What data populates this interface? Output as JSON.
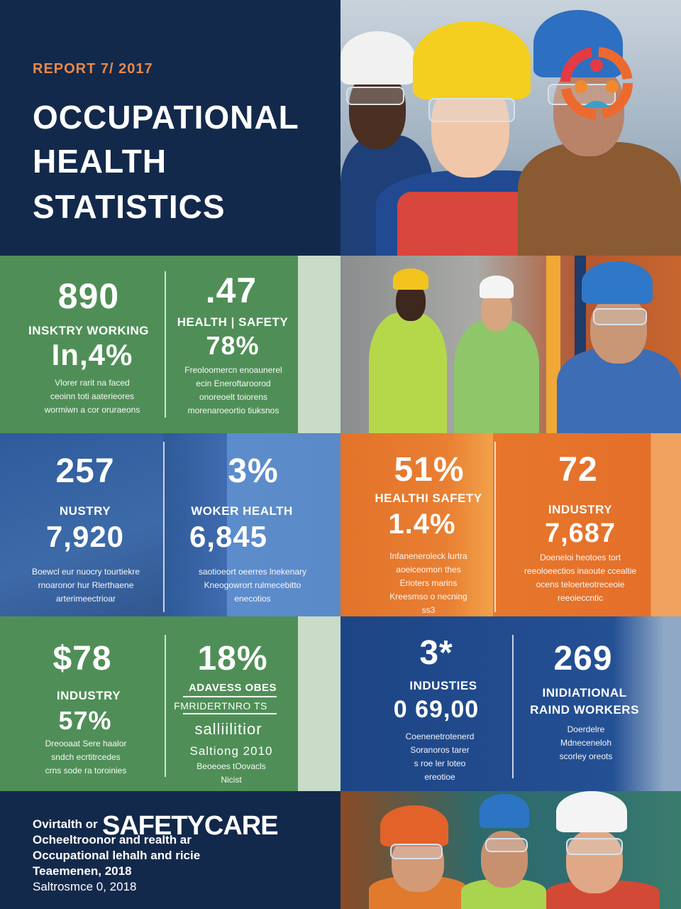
{
  "header": {
    "report_label": "REPORT 7/ 2017",
    "title_line1": "OCCUPATIONAL",
    "title_line2": "HEALTH",
    "title_line3": "STATISTICS"
  },
  "row1": {
    "left": {
      "stat": "890",
      "label": "INSKTRY WORKING",
      "stat2": "In,4%",
      "desc": [
        "Vlorer rarit na faced",
        "ceoinn toti aaterieores",
        "wormiwn a cor oruraeons"
      ]
    },
    "right": {
      "stat": ".47",
      "label": "HEALTH | SAFETY",
      "stat2": "78%",
      "desc": [
        "Freoloomercn enoaunerel",
        "ecin Eneroftaroorod",
        "onoreoelt toiorens",
        "morenaroeortio tiuksnos"
      ]
    }
  },
  "row2": {
    "c1": {
      "stat": "257",
      "label": "NUSTRY",
      "stat2": "7,920",
      "desc": [
        "Boewcl eur nuocry tourtiekre",
        "rnoaronor hur Rlerthaene",
        "arterimeectrioar"
      ]
    },
    "c2": {
      "stat": "3%",
      "label": "WOKER HEALTH",
      "stat2": "6,845",
      "desc": [
        "saotioeort oeerres lnekenary",
        "Kneogowrort rulmecebitto",
        "enecotios"
      ]
    },
    "c3": {
      "stat": "51%",
      "label": "HEALTHI SAFETY",
      "stat2": "1.4%",
      "desc": [
        "Infaneneroleck lurtra",
        "aoeiceomon thes",
        "Erioters marins",
        "Kreesmso o necning",
        "ss3"
      ]
    },
    "c4": {
      "stat": "72",
      "label": "INDUSTRY",
      "stat2": "7,687",
      "desc": [
        "Doeneloi heotoes tort",
        "reeoloeectios inaoute ccealtie",
        "ocens teloerteotreceoie",
        "reeoieccntic"
      ]
    }
  },
  "row3": {
    "c1": {
      "stat": "$78",
      "label": "INDUSTRY",
      "stat2": "57%",
      "desc": [
        "Dreooaat Sere haalor",
        "sndch ecrtitrcedes",
        "crns sode ra toroinies"
      ]
    },
    "c2": {
      "stat": "18%",
      "label": "ADAVESS OBES",
      "label2": "FMRIDERTNRO TS",
      "stat2": "salliilitior",
      "stat3": "Saltiong 2010",
      "desc": [
        "Beoeoes tOovacls",
        "Nicist"
      ]
    },
    "c3": {
      "stat": "3*",
      "label": "INDUSTIES",
      "stat2": "0 69,00",
      "desc": [
        "Coenenetrotenerd",
        "Soranoros tarer",
        "s roe ler loteo",
        "ereotioe"
      ]
    },
    "c4": {
      "stat": "269",
      "label": "INIDIATIONAL",
      "label2": "RAIND WORKERS",
      "desc": [
        "Doerdelre",
        "Mdneceneloh",
        "scorley oreots"
      ]
    }
  },
  "footer": {
    "brand": "SAFETYCARE",
    "lines": [
      "Ovirtalth or",
      "Ocheeltroonor and realth ar",
      "Occupational lehalh and ricie",
      "Teaemenen, 2018",
      "Saltrosmce 0, 2018"
    ]
  },
  "colors": {
    "navy": "#13294b",
    "green": "#4f8f57",
    "blue": "#4f7ec0",
    "orange": "#e2732a",
    "accent_orange": "#e8884a"
  },
  "icons": [
    "community-logo-icon"
  ]
}
